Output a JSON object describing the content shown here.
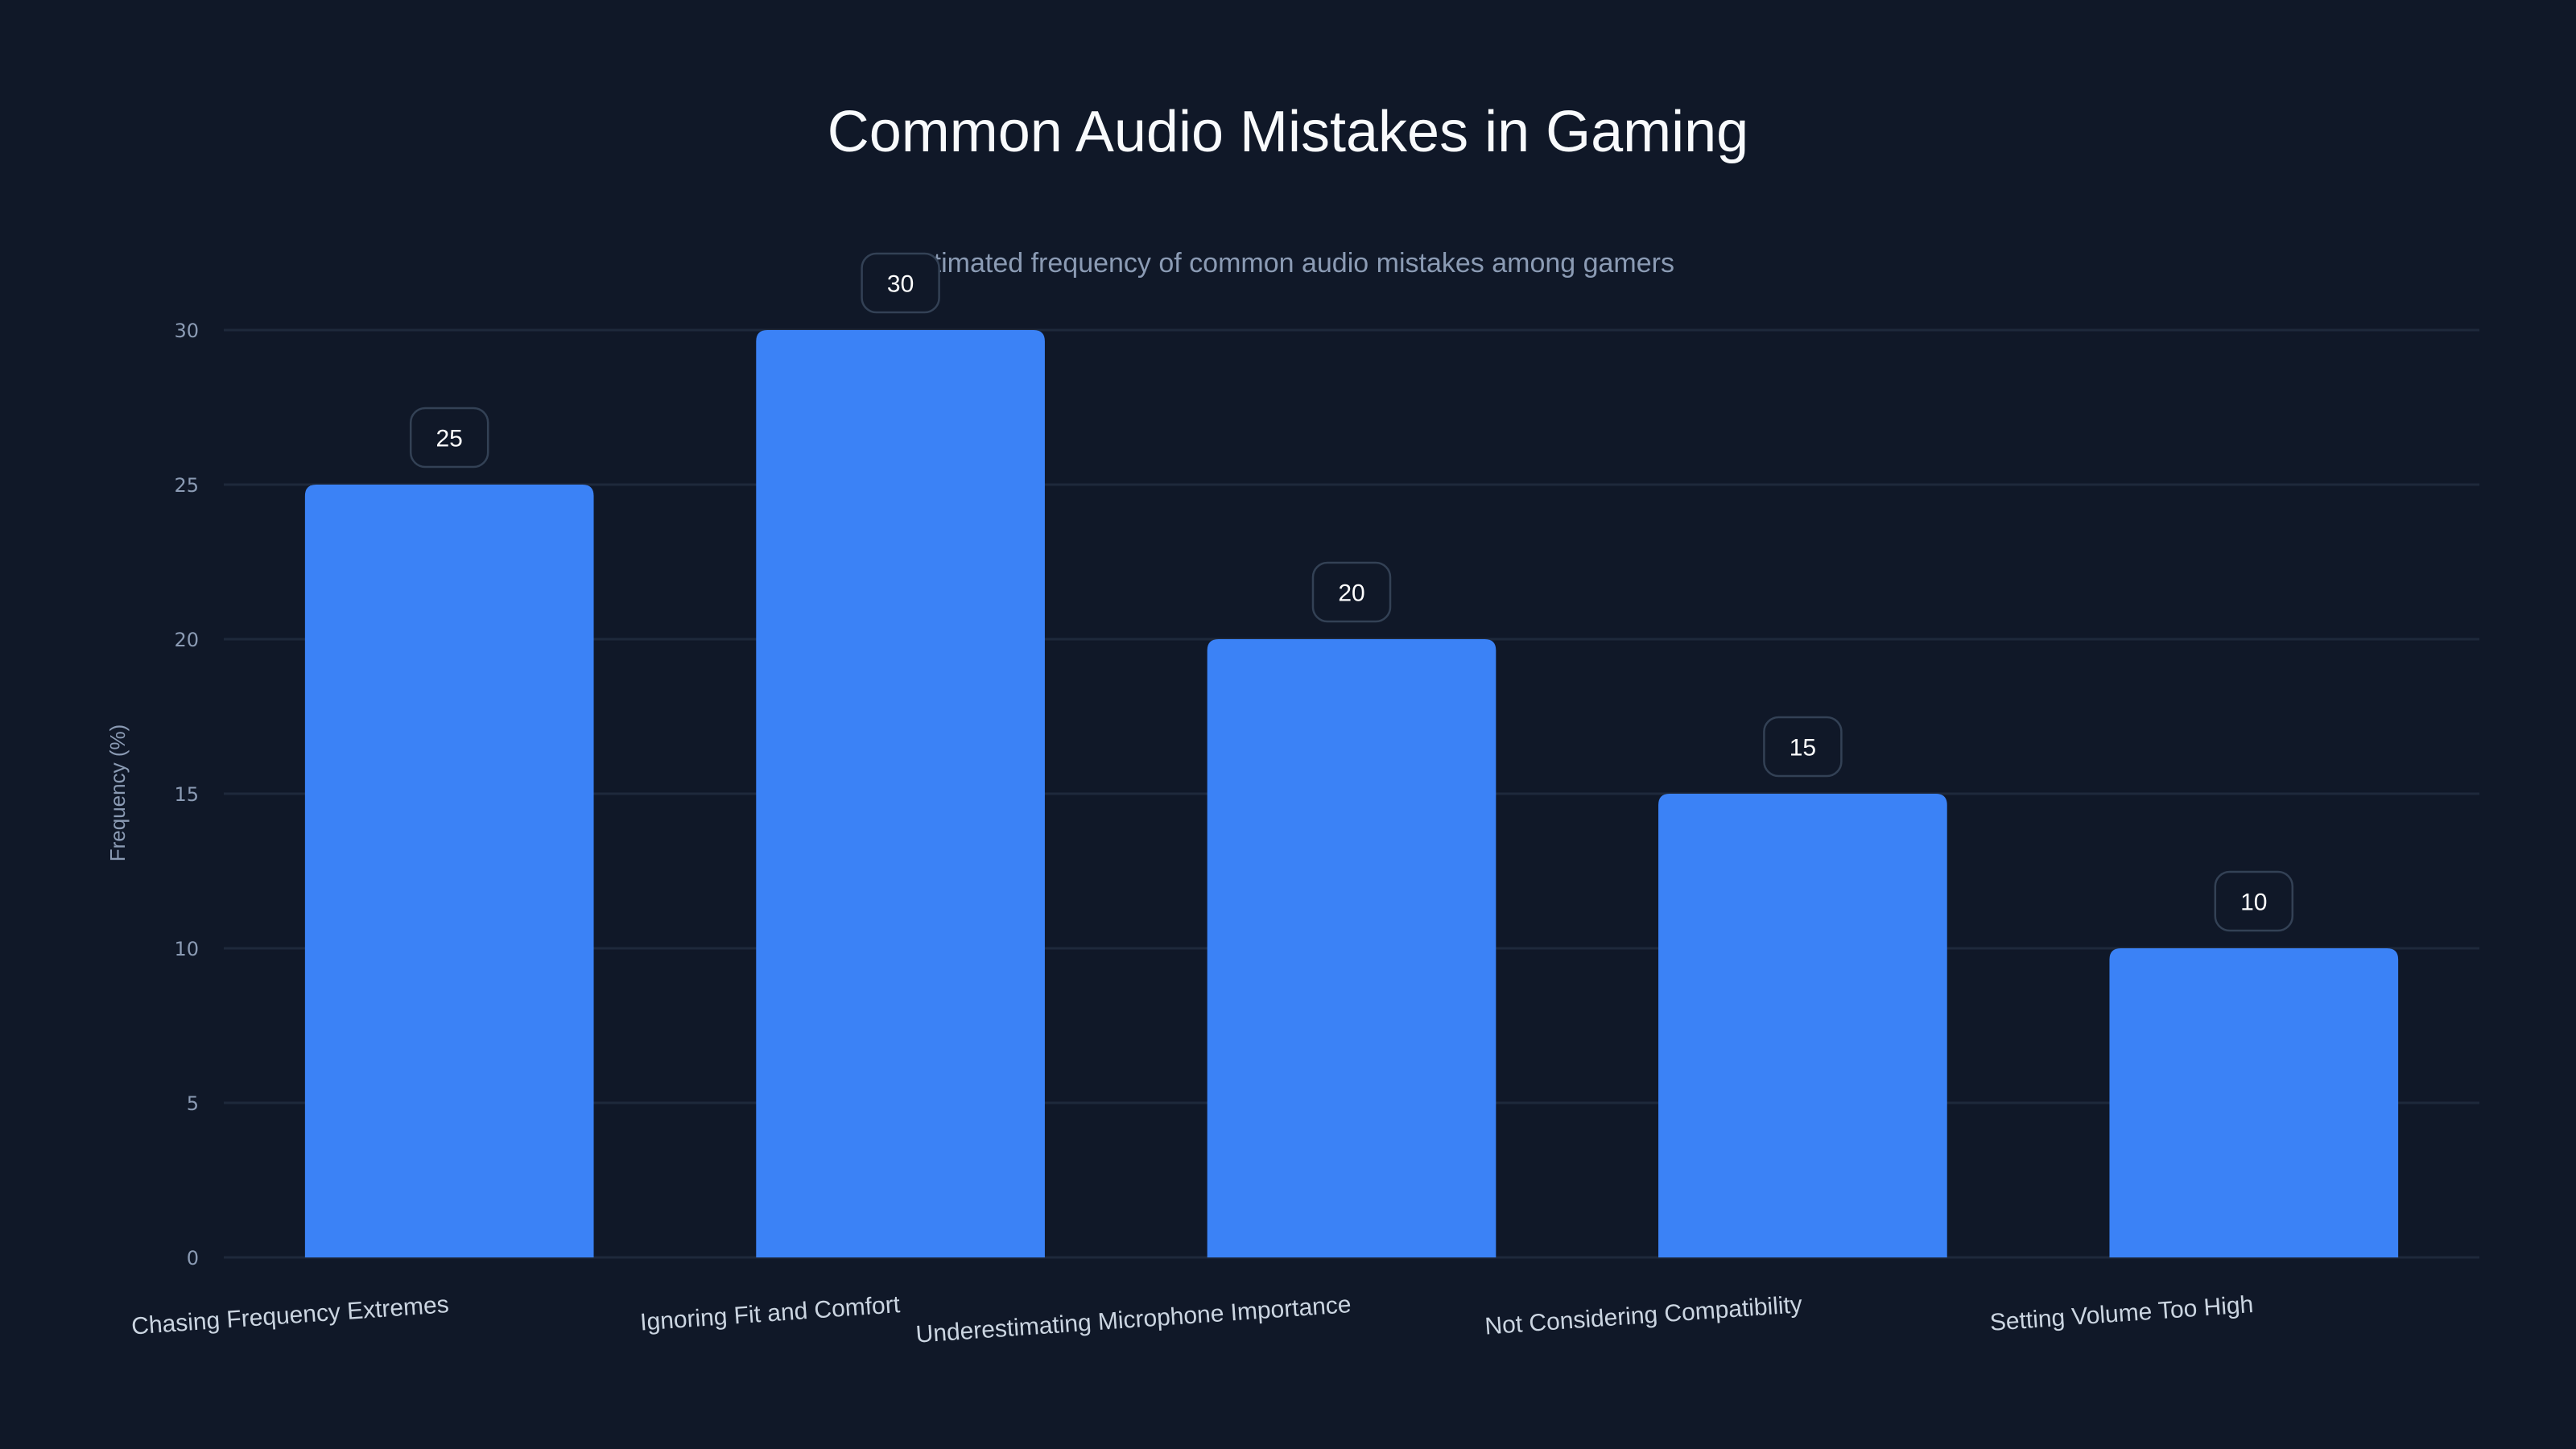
{
  "chart_data": {
    "type": "bar",
    "title": "Common Audio Mistakes in Gaming",
    "subtitle": "Estimated frequency of common audio mistakes among gamers",
    "xlabel": "",
    "ylabel": "Frequency (%)",
    "categories": [
      "Chasing Frequency Extremes",
      "Ignoring Fit and Comfort",
      "Underestimating Microphone Importance",
      "Not Considering Compatibility",
      "Setting Volume Too High"
    ],
    "values": [
      25,
      30,
      20,
      15,
      10
    ],
    "value_labels": [
      "25",
      "30",
      "20",
      "15",
      "10"
    ],
    "ylim": [
      0,
      30
    ],
    "yticks": [
      0,
      5,
      10,
      15,
      20,
      25,
      30
    ],
    "ytick_labels": [
      "0",
      "5",
      "10",
      "15",
      "20",
      "25",
      "30"
    ],
    "grid": true,
    "legend": null,
    "xlabel_rotation": -4
  },
  "colors": {
    "background": "#101828",
    "bar": "#3b82f6",
    "grid": "#1e293b",
    "label_box_border": "#334155",
    "label_box_fill": "#101828"
  }
}
